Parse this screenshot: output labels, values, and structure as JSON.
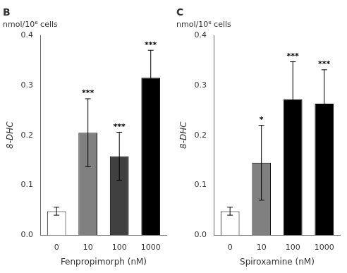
{
  "chart_data": [
    {
      "type": "bar",
      "title": "B",
      "subtitle": "nmol/10⁶ cells",
      "categories": [
        "0",
        "10",
        "100",
        "1000"
      ],
      "values": [
        0.048,
        0.205,
        0.158,
        0.315
      ],
      "errors": [
        0.008,
        0.068,
        0.048,
        0.055
      ],
      "colors": [
        "white",
        "#808080",
        "#404040",
        "#000000"
      ],
      "annotations": [
        null,
        "***",
        "***",
        "***"
      ],
      "xlabel": "Fenpropimorph (nM)",
      "ylabel": "8-DHC",
      "ylim": [
        0,
        0.4
      ],
      "yticks": [
        {
          "value": 0.0,
          "label": "0.0"
        },
        0.1,
        0.2,
        0.3,
        0.4
      ],
      "grid": false
    },
    {
      "type": "bar",
      "title": "C",
      "subtitle": "nmol/10⁶ cells",
      "categories": [
        "0",
        "10",
        "100",
        "1000"
      ],
      "values": [
        0.048,
        0.145,
        0.272,
        0.263
      ],
      "errors": [
        0.008,
        0.075,
        0.075,
        0.068
      ],
      "colors": [
        "white",
        "#808080",
        "#000000",
        "#000000"
      ],
      "annotations": [
        null,
        "*",
        "***",
        "***"
      ],
      "xlabel": "Spiroxamine (nM)",
      "ylabel": "8-DHC",
      "ylim": [
        0,
        0.4
      ],
      "yticks": [
        {
          "value": 0.0,
          "label": "0.0"
        },
        0.1,
        0.2,
        0.3,
        0.4
      ],
      "grid": false
    }
  ]
}
